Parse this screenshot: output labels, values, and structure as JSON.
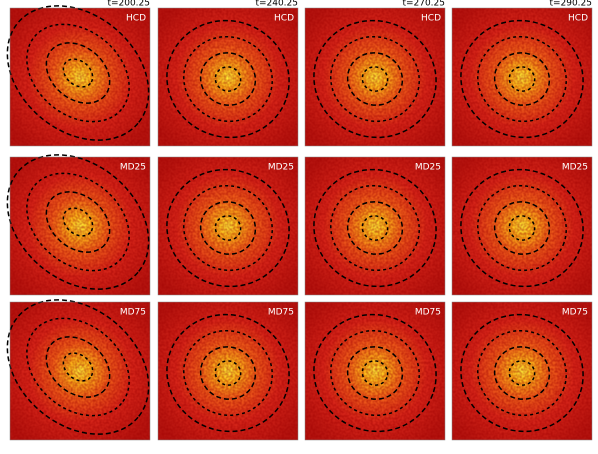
{
  "columns": [
    {
      "time": "t=200.25"
    },
    {
      "time": "t=240.25"
    },
    {
      "time": "t=270.25"
    },
    {
      "time": "t=290.25"
    }
  ],
  "rows": [
    {
      "label": "HCD"
    },
    {
      "label": "MD25"
    },
    {
      "label": "MD75"
    }
  ]
}
